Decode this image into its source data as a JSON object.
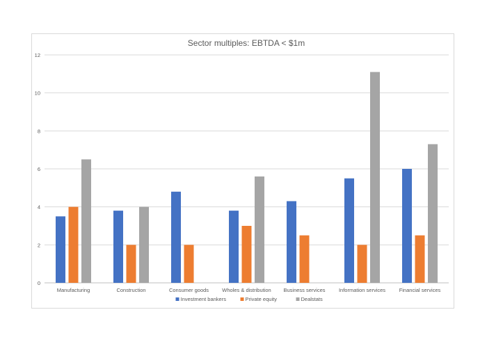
{
  "chart_data": {
    "type": "bar",
    "title": "Sector multiples: EBTDA < $1m",
    "xlabel": "",
    "ylabel": "",
    "categories": [
      "Manufacturing",
      "Construction",
      "Consumer goods",
      "Wholes & distribution",
      "Business services",
      "Information services",
      "Financial services"
    ],
    "series": [
      {
        "name": "Investment bankers",
        "color": "#4472c4",
        "values": [
          3.5,
          3.8,
          4.8,
          3.8,
          4.3,
          5.5,
          6.0
        ]
      },
      {
        "name": "Private equity",
        "color": "#ed7d31",
        "values": [
          4.0,
          2.0,
          2.0,
          3.0,
          2.5,
          2.0,
          2.5
        ]
      },
      {
        "name": "Dealstats",
        "color": "#a5a5a5",
        "values": [
          6.5,
          4.0,
          null,
          5.6,
          null,
          11.1,
          7.3
        ]
      }
    ],
    "ylim": [
      0,
      12
    ],
    "yticks": [
      0,
      2,
      4,
      6,
      8,
      10,
      12
    ],
    "grid": true,
    "legend": "bottom"
  }
}
